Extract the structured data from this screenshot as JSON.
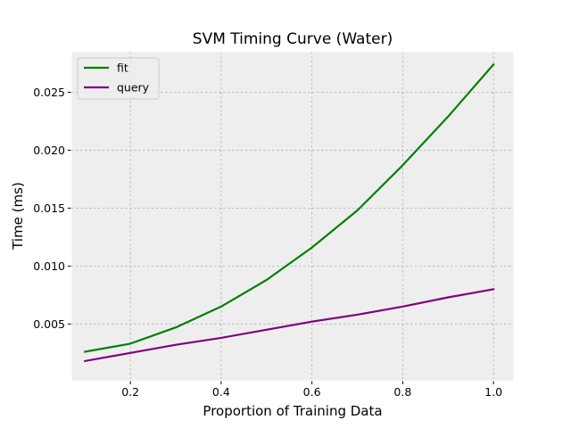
{
  "chart_data": {
    "type": "line",
    "title": "SVM Timing Curve (Water)",
    "xlabel": "Proportion of Training Data",
    "ylabel": "Time (ms)",
    "xlim": [
      0.07,
      1.045
    ],
    "ylim": [
      0.0001,
      0.0285
    ],
    "xticks": [
      0.2,
      0.4,
      0.6,
      0.8,
      1.0
    ],
    "xtick_labels": [
      "0.2",
      "0.4",
      "0.6",
      "0.8",
      "1.0"
    ],
    "yticks": [
      0.005,
      0.01,
      0.015,
      0.02,
      0.025
    ],
    "ytick_labels": [
      "0.005",
      "0.010",
      "0.015",
      "0.020",
      "0.025"
    ],
    "grid": true,
    "legend": "top-left",
    "x": [
      0.1,
      0.2,
      0.3,
      0.4,
      0.5,
      0.6,
      0.7,
      0.8,
      0.9,
      1.0
    ],
    "series": [
      {
        "name": "fit",
        "color": "#008000",
        "values": [
          0.0026,
          0.0033,
          0.0047,
          0.0065,
          0.0088,
          0.0116,
          0.0148,
          0.0187,
          0.0229,
          0.0274
        ]
      },
      {
        "name": "query",
        "color": "#800080",
        "values": [
          0.0018,
          0.0025,
          0.0032,
          0.0038,
          0.0045,
          0.0052,
          0.0058,
          0.0065,
          0.0073,
          0.008
        ]
      }
    ]
  }
}
